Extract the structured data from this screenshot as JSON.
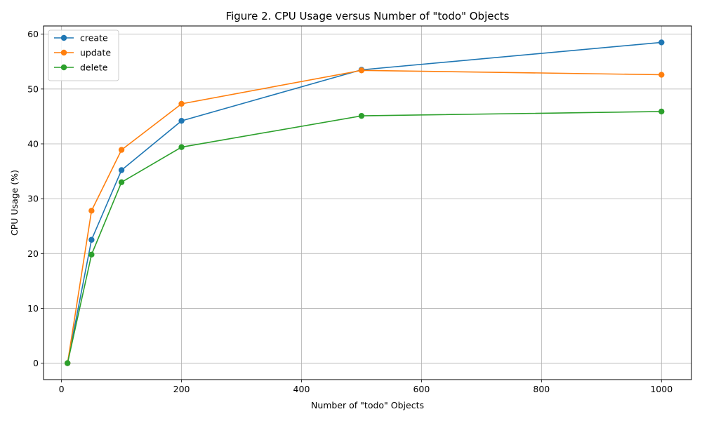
{
  "chart_data": {
    "type": "line",
    "title": "Figure 2. CPU Usage versus Number of \"todo\" Objects",
    "xlabel": "Number of \"todo\" Objects",
    "ylabel": "CPU Usage (%)",
    "xlim": [
      -30,
      1050
    ],
    "ylim": [
      -3,
      61.5
    ],
    "xticks": [
      0,
      200,
      400,
      600,
      800,
      1000
    ],
    "yticks": [
      0,
      10,
      20,
      30,
      40,
      50,
      60
    ],
    "grid": true,
    "legend_position": "top-left",
    "x": [
      10,
      50,
      100,
      200,
      500,
      1000
    ],
    "series": [
      {
        "name": "create",
        "color": "#1f77b4",
        "values": [
          0,
          22.5,
          35.2,
          44.2,
          53.5,
          58.5
        ]
      },
      {
        "name": "update",
        "color": "#ff7f0e",
        "values": [
          0,
          27.8,
          38.9,
          47.3,
          53.4,
          52.6
        ]
      },
      {
        "name": "delete",
        "color": "#2ca02c",
        "values": [
          0,
          19.8,
          33.0,
          39.4,
          45.1,
          45.9
        ]
      }
    ]
  }
}
